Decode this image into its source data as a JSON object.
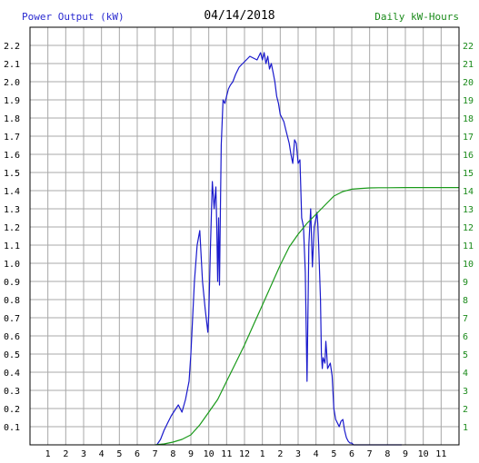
{
  "header": {
    "left_label": "Power Output (kW)",
    "date": "04/14/2018",
    "right_label": "Daily kW-Hours"
  },
  "colors": {
    "power_line": "#1a1acc",
    "energy_line": "#1a9a1a",
    "grid": "#a8a8a8",
    "left_text": "#2a2ad0",
    "right_text": "#1a8a1a"
  },
  "chart_data": {
    "type": "line",
    "grid": true,
    "x_tick_labels": [
      "1",
      "2",
      "3",
      "4",
      "5",
      "6",
      "7",
      "8",
      "9",
      "10",
      "11",
      "12",
      "1",
      "2",
      "3",
      "4",
      "5",
      "6",
      "7",
      "8",
      "9",
      "10",
      "11"
    ],
    "xlim": [
      0,
      24
    ],
    "y_left": {
      "label": "Power Output (kW)",
      "ylim": [
        0,
        2.3
      ],
      "ticks": [
        "0.1",
        "0.2",
        "0.3",
        "0.4",
        "0.5",
        "0.6",
        "0.7",
        "0.8",
        "0.9",
        "1.0",
        "1.1",
        "1.2",
        "1.3",
        "1.4",
        "1.5",
        "1.6",
        "1.7",
        "1.8",
        "1.9",
        "2.0",
        "2.1",
        "2.2"
      ]
    },
    "y_right": {
      "label": "Daily kW-Hours",
      "ylim": [
        0,
        23
      ],
      "ticks": [
        "1",
        "2",
        "3",
        "4",
        "5",
        "6",
        "7",
        "8",
        "9",
        "10",
        "11",
        "12",
        "13",
        "14",
        "15",
        "16",
        "17",
        "18",
        "19",
        "20",
        "21",
        "22"
      ]
    },
    "series": [
      {
        "name": "Power Output (kW)",
        "axis": "left",
        "x": [
          7.1,
          7.3,
          7.5,
          7.7,
          7.9,
          8.1,
          8.3,
          8.5,
          8.7,
          8.9,
          9.0,
          9.2,
          9.35,
          9.5,
          9.65,
          9.8,
          9.95,
          10.0,
          10.1,
          10.2,
          10.3,
          10.4,
          10.45,
          10.5,
          10.55,
          10.6,
          10.65,
          10.7,
          10.8,
          10.9,
          11.0,
          11.1,
          11.2,
          11.35,
          11.5,
          11.7,
          11.9,
          12.1,
          12.3,
          12.5,
          12.7,
          12.9,
          13.0,
          13.1,
          13.2,
          13.3,
          13.4,
          13.5,
          13.6,
          13.7,
          13.8,
          13.9,
          14.0,
          14.1,
          14.2,
          14.3,
          14.4,
          14.5,
          14.6,
          14.7,
          14.8,
          14.9,
          15.0,
          15.1,
          15.2,
          15.3,
          15.4,
          15.5,
          15.6,
          15.7,
          15.8,
          15.9,
          16.0,
          16.05,
          16.1,
          16.15,
          16.2,
          16.25,
          16.3,
          16.35,
          16.4,
          16.5,
          16.55,
          16.6,
          16.65,
          16.7,
          16.8,
          16.9,
          17.0,
          17.1,
          17.2,
          17.3,
          17.4,
          17.5,
          17.6,
          17.7,
          17.8,
          17.9,
          18.0,
          18.1,
          18.2,
          18.3,
          18.5,
          18.7,
          18.9,
          19.1,
          19.3,
          19.5,
          19.7,
          19.9,
          20.1,
          20.4,
          20.8
        ],
        "values": [
          0.0,
          0.03,
          0.08,
          0.12,
          0.16,
          0.19,
          0.22,
          0.18,
          0.25,
          0.35,
          0.5,
          0.9,
          1.1,
          1.18,
          0.9,
          0.75,
          0.62,
          0.72,
          1.1,
          1.45,
          1.3,
          1.42,
          1.2,
          0.9,
          1.25,
          0.88,
          1.3,
          1.65,
          1.9,
          1.88,
          1.92,
          1.96,
          1.98,
          2.0,
          2.04,
          2.08,
          2.1,
          2.12,
          2.14,
          2.13,
          2.12,
          2.16,
          2.12,
          2.16,
          2.1,
          2.14,
          2.07,
          2.1,
          2.05,
          2.0,
          1.92,
          1.88,
          1.82,
          1.8,
          1.78,
          1.74,
          1.7,
          1.66,
          1.6,
          1.55,
          1.68,
          1.66,
          1.55,
          1.57,
          1.25,
          1.2,
          0.95,
          0.35,
          1.1,
          1.3,
          0.98,
          1.2,
          1.25,
          1.28,
          1.22,
          1.1,
          0.95,
          0.8,
          0.5,
          0.42,
          0.48,
          0.45,
          0.57,
          0.5,
          0.42,
          0.43,
          0.45,
          0.38,
          0.2,
          0.14,
          0.12,
          0.1,
          0.13,
          0.14,
          0.08,
          0.04,
          0.02,
          0.01,
          0.01,
          0.0,
          0.0,
          0.0,
          0.0,
          0.0,
          0.0,
          0.0,
          0.0,
          0.0,
          0.0,
          0.0,
          0.0,
          0.0,
          0.0
        ]
      },
      {
        "name": "Daily kW-Hours",
        "axis": "right",
        "x": [
          7.0,
          7.5,
          8.0,
          8.5,
          9.0,
          9.5,
          10.0,
          10.5,
          11.0,
          11.5,
          12.0,
          12.5,
          13.0,
          13.5,
          14.0,
          14.5,
          15.0,
          15.5,
          16.0,
          16.5,
          17.0,
          17.5,
          18.0,
          18.5,
          19.0,
          19.5,
          20.0,
          21.0,
          22.0,
          23.0,
          24.0
        ],
        "values": [
          0.0,
          0.05,
          0.15,
          0.3,
          0.55,
          1.1,
          1.8,
          2.5,
          3.5,
          4.5,
          5.5,
          6.6,
          7.7,
          8.8,
          9.9,
          10.9,
          11.6,
          12.2,
          12.7,
          13.2,
          13.7,
          13.95,
          14.08,
          14.12,
          14.15,
          14.16,
          14.16,
          14.17,
          14.17,
          14.17,
          14.17
        ]
      }
    ]
  }
}
